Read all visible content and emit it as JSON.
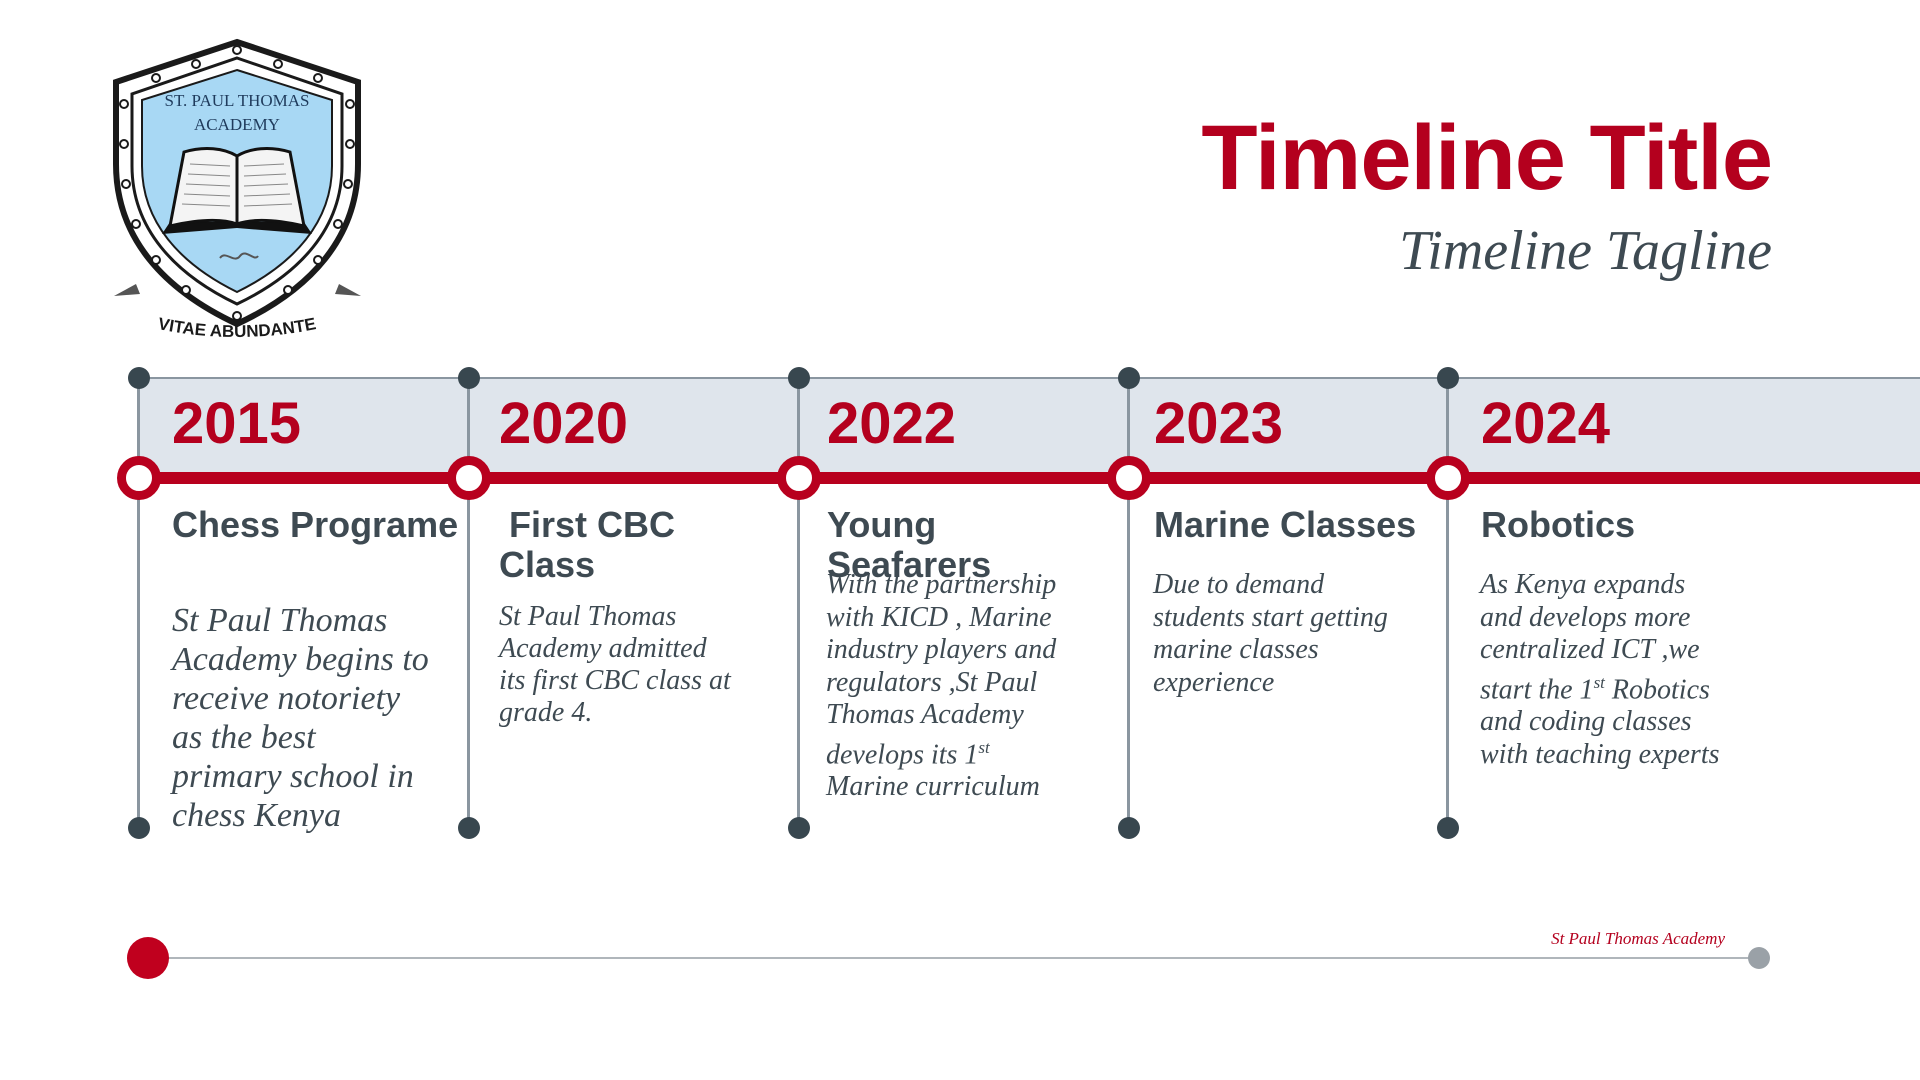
{
  "logo": {
    "name_line1": "ST. PAUL THOMAS",
    "name_line2": "ACADEMY",
    "motto": "VITAE ABUNDANTE"
  },
  "header": {
    "title": "Timeline Title",
    "tagline": "Timeline Tagline"
  },
  "timeline": [
    {
      "year": "2015",
      "heading": "Chess Programe",
      "description": "St Paul Thomas Academy begins to receive notoriety as the best primary school in chess Kenya"
    },
    {
      "year": "2020",
      "heading": " First CBC Class",
      "description": "St Paul Thomas Academy admitted its first CBC class at grade 4."
    },
    {
      "year": "2022",
      "heading": "Young Seafarers",
      "description_parts": [
        "With the partnership with KICD , Marine industry players and regulators ,St Paul Thomas Academy develops its 1",
        "st",
        " Marine curriculum"
      ]
    },
    {
      "year": "2023",
      "heading": "Marine Classes",
      "description": "Due to demand students start getting marine classes experience"
    },
    {
      "year": "2024",
      "heading": "Robotics",
      "description_parts": [
        "As Kenya expands and develops more centralized ICT ,we start the 1",
        "st",
        " Robotics and coding classes with teaching experts"
      ]
    }
  ],
  "footer": {
    "text": "St Paul Thomas Academy"
  },
  "colors": {
    "accent_red": "#b4001e",
    "text_slate": "#3e4a52",
    "band_bg": "#dfe5ec",
    "logo_shield": "#a8d8f4"
  }
}
